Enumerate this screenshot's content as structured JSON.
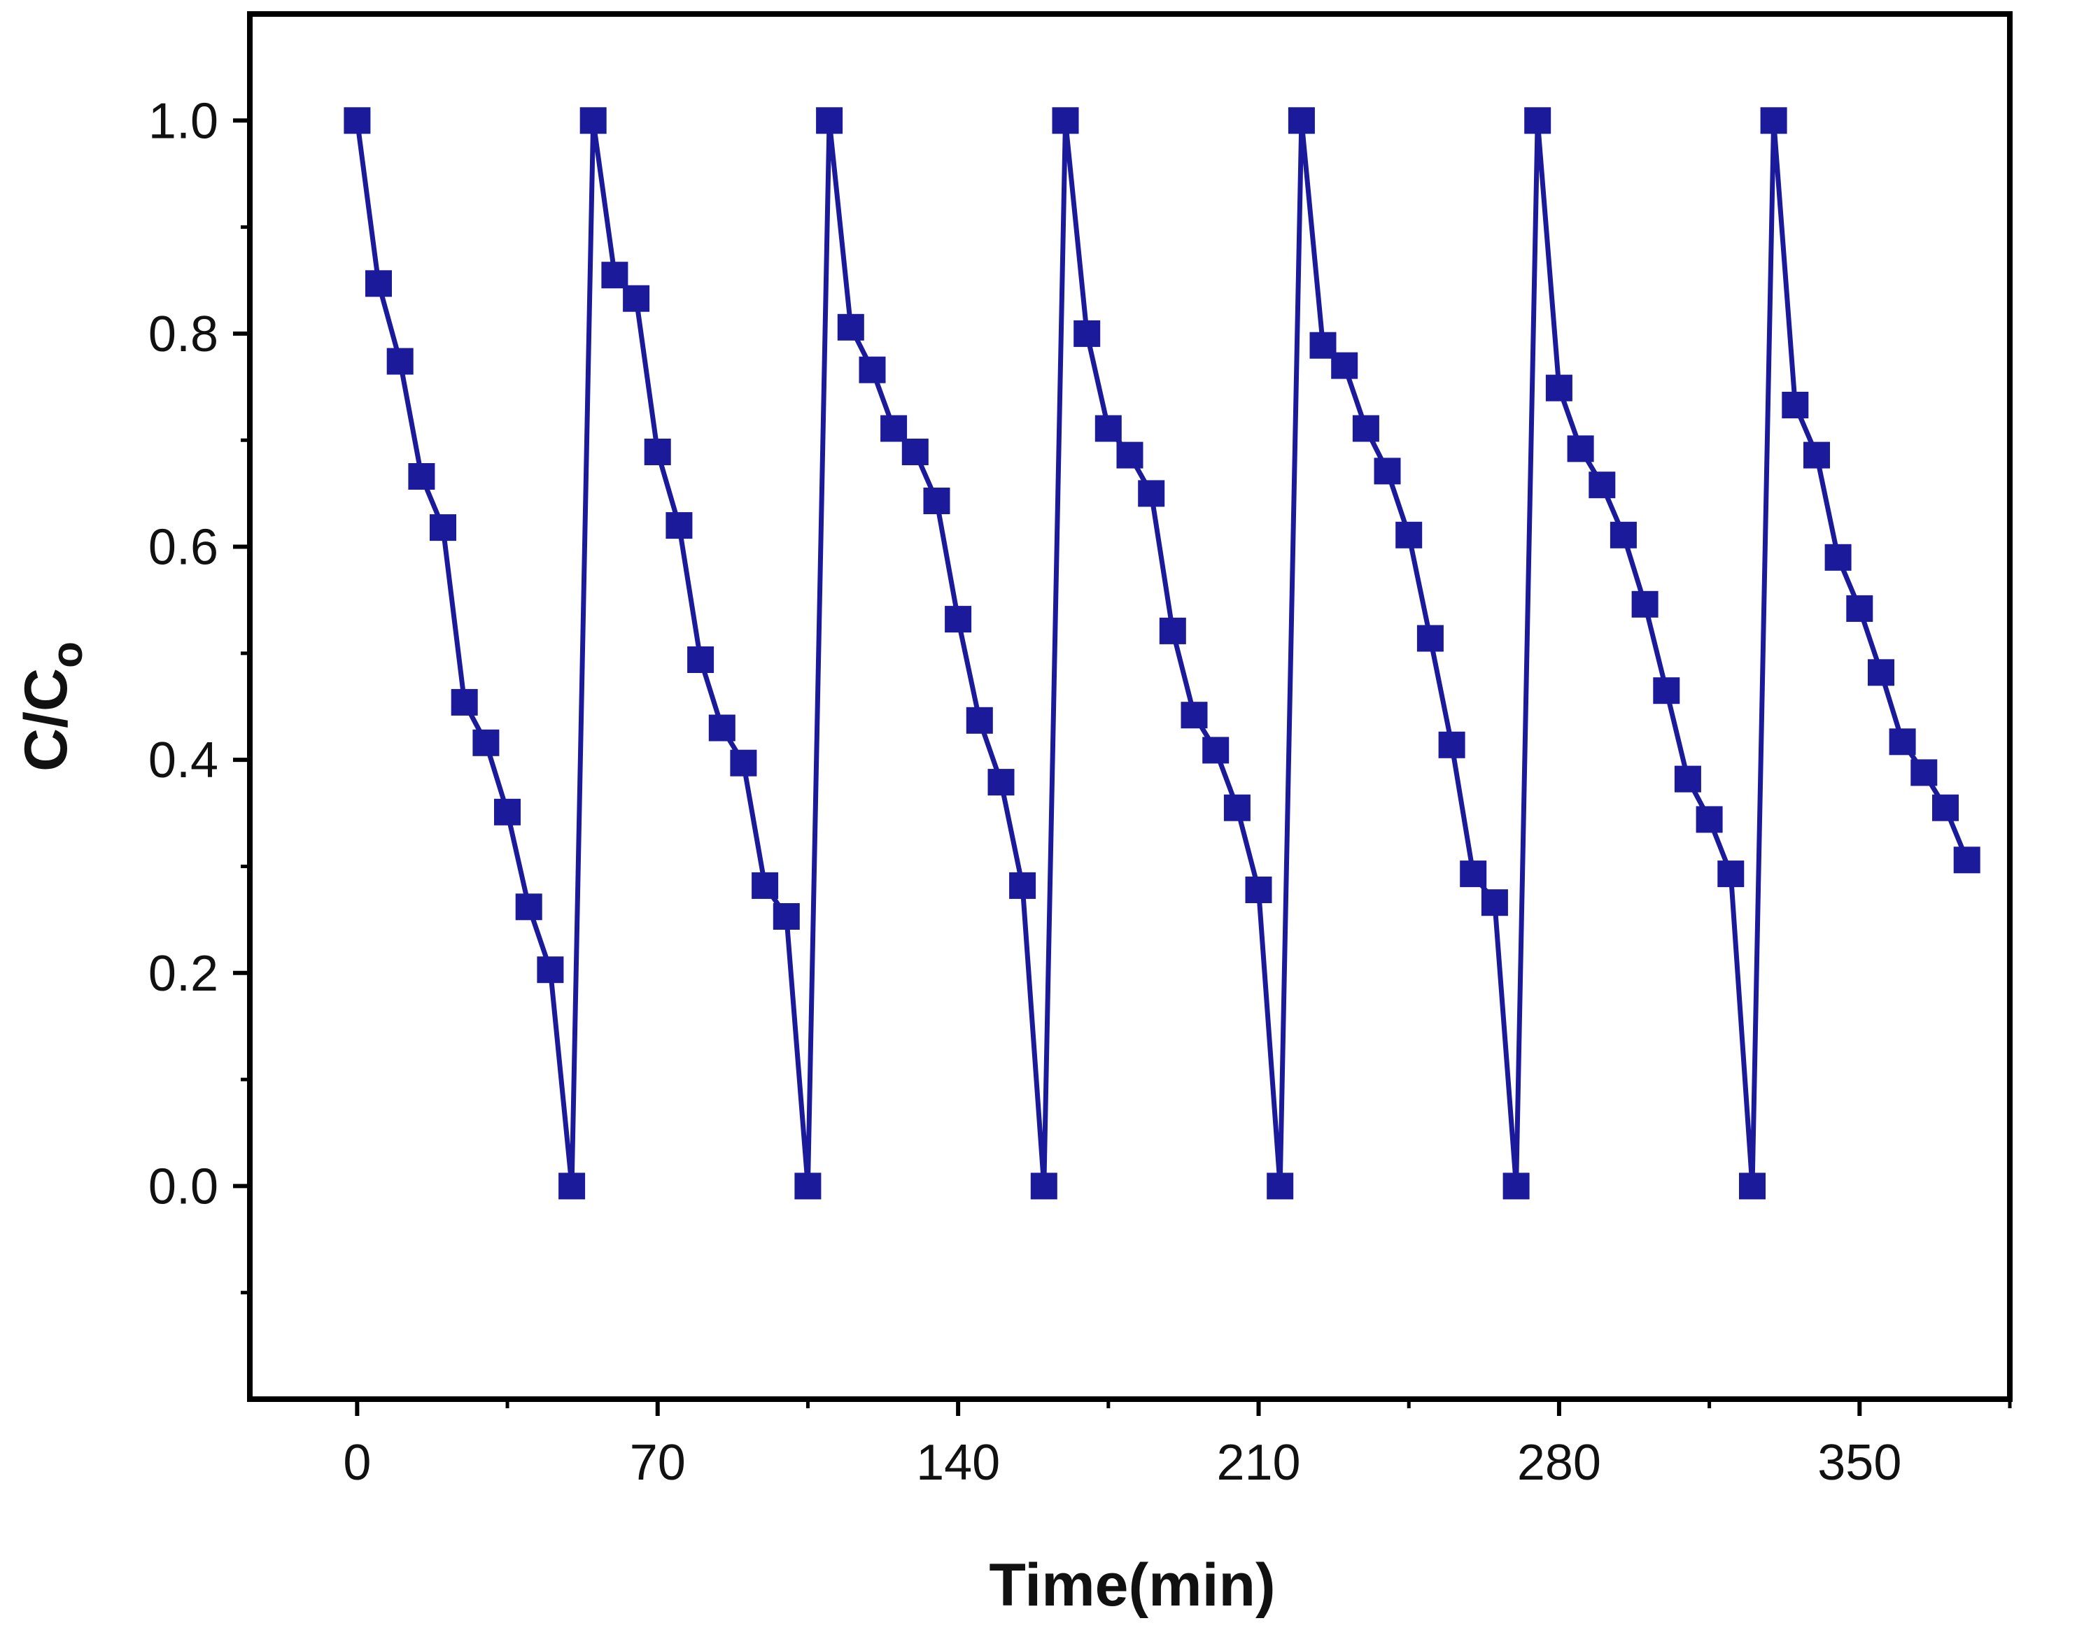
{
  "chart_data": {
    "type": "line",
    "title": "",
    "xlabel": "Time(min)",
    "ylabel_main": "C/C",
    "ylabel_sub": "o",
    "xlim": [
      -25,
      385
    ],
    "ylim": [
      -0.2,
      1.1
    ],
    "xticks": [
      0,
      70,
      140,
      210,
      280,
      350
    ],
    "xtick_labels": [
      "0",
      "70",
      "140",
      "210",
      "280",
      "350"
    ],
    "xminor": [
      35,
      105,
      175,
      245,
      315,
      385
    ],
    "yticks": [
      0.0,
      0.2,
      0.4,
      0.6,
      0.8,
      1.0
    ],
    "ytick_labels": [
      "0.0",
      "0.2",
      "0.4",
      "0.6",
      "0.8",
      "1.0"
    ],
    "yminor": [
      -0.1,
      0.1,
      0.3,
      0.5,
      0.7,
      0.9
    ],
    "grid": false,
    "legend": "none",
    "series": [
      {
        "name": "C/Co",
        "color": "#1a1a9a",
        "marker": "square",
        "x": [
          0,
          5,
          10,
          15,
          20,
          25,
          30,
          35,
          40,
          45,
          50,
          55,
          60,
          65,
          70,
          75,
          80,
          85,
          90,
          95,
          100,
          105,
          110,
          115,
          120,
          125,
          130,
          135,
          140,
          145,
          150,
          155,
          160,
          165,
          170,
          175,
          180,
          185,
          190,
          195,
          200,
          205,
          210,
          215,
          220,
          225,
          230,
          235,
          240,
          245,
          250,
          255,
          260,
          265,
          270,
          275,
          280,
          285,
          290,
          295,
          300,
          305,
          310,
          315,
          320,
          325,
          330,
          335,
          340,
          345,
          350,
          355,
          360,
          365,
          370,
          375
        ],
        "y": [
          1.0,
          0.847,
          0.774,
          0.666,
          0.618,
          0.454,
          0.416,
          0.351,
          0.262,
          0.203,
          0.0,
          1.0,
          0.855,
          0.833,
          0.689,
          0.62,
          0.494,
          0.43,
          0.397,
          0.282,
          0.253,
          0.0,
          1.0,
          0.806,
          0.766,
          0.711,
          0.689,
          0.643,
          0.532,
          0.437,
          0.379,
          0.282,
          0.0,
          1.0,
          0.8,
          0.711,
          0.686,
          0.65,
          0.521,
          0.442,
          0.409,
          0.355,
          0.278,
          0.0,
          1.0,
          0.789,
          0.77,
          0.711,
          0.671,
          0.611,
          0.514,
          0.414,
          0.293,
          0.266,
          0.0,
          1.0,
          0.749,
          0.692,
          0.658,
          0.611,
          0.546,
          0.465,
          0.382,
          0.344,
          0.293,
          0.0,
          1.0,
          0.733,
          0.686,
          0.59,
          0.542,
          0.482,
          0.417,
          0.388,
          0.355,
          0.306
        ]
      }
    ]
  }
}
